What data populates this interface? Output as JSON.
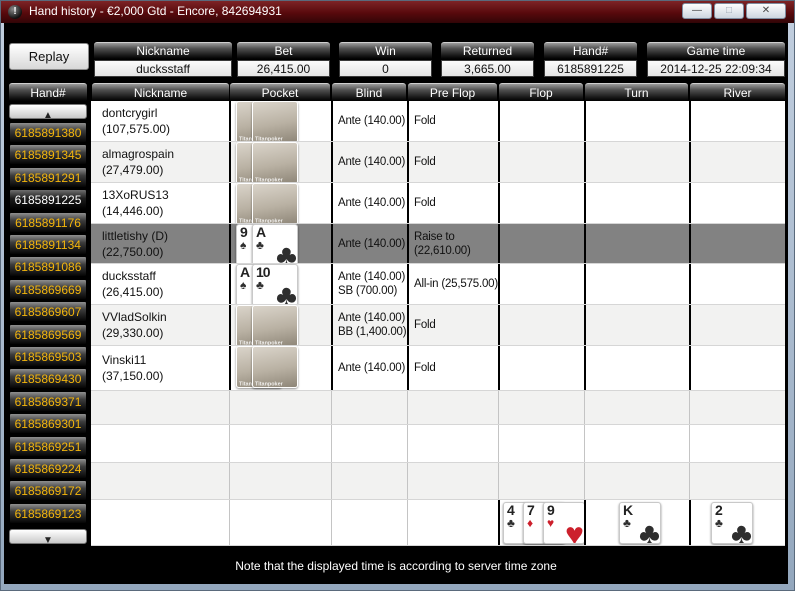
{
  "window": {
    "title": "Hand history - €2,000 Gtd - Encore, 842694931",
    "title_icon_glyph": "!",
    "minimize_glyph": "—",
    "maximize_glyph": "□",
    "close_glyph": "✕"
  },
  "summary": {
    "replay_label": "Replay",
    "fields": [
      {
        "label": "Nickname",
        "value": "ducksstaff"
      },
      {
        "label": "Bet",
        "value": "26,415.00"
      },
      {
        "label": "Win",
        "value": "0"
      },
      {
        "label": "Returned",
        "value": "3,665.00"
      },
      {
        "label": "Hand#",
        "value": "6185891225"
      },
      {
        "label": "Game time",
        "value": "2014-12-25 22:09:34"
      }
    ]
  },
  "columns": [
    "Hand#",
    "Nickname",
    "Pocket",
    "Blind",
    "Pre Flop",
    "Flop",
    "Turn",
    "River"
  ],
  "sidebar": {
    "up_icon": "▲",
    "down_icon": "▼",
    "selected": "6185891225",
    "hands": [
      "6185891380",
      "6185891345",
      "6185891291",
      "6185891225",
      "6185891176",
      "6185891134",
      "6185891086",
      "6185869669",
      "6185869607",
      "6185869569",
      "6185869503",
      "6185869430",
      "6185869371",
      "6185869301",
      "6185869251",
      "6185869224",
      "6185869172",
      "6185869123"
    ]
  },
  "rows": [
    {
      "nickname": "dontcrygirl",
      "stack": "(107,575.00)",
      "pocket": "hidden",
      "blind": [
        "Ante (140.00)"
      ],
      "preflop": "Fold",
      "highlight": false
    },
    {
      "nickname": "almagrospain",
      "stack": "(27,479.00)",
      "pocket": "hidden",
      "blind": [
        "Ante (140.00)"
      ],
      "preflop": "Fold",
      "highlight": false
    },
    {
      "nickname": "13XoRUS13",
      "stack": "(14,446.00)",
      "pocket": "hidden",
      "blind": [
        "Ante (140.00)"
      ],
      "preflop": "Fold",
      "highlight": false
    },
    {
      "nickname": "littletishy (D)",
      "stack": "(22,750.00)",
      "pocket": [
        {
          "rank": "9",
          "suit": "spade"
        },
        {
          "rank": "A",
          "suit": "club"
        }
      ],
      "blind": [
        "Ante (140.00)"
      ],
      "preflop": "Raise to (22,610.00)",
      "highlight": true
    },
    {
      "nickname": "ducksstaff",
      "stack": "(26,415.00)",
      "pocket": [
        {
          "rank": "A",
          "suit": "spade"
        },
        {
          "rank": "10",
          "suit": "club"
        }
      ],
      "blind": [
        "Ante (140.00)",
        "SB (700.00)"
      ],
      "preflop": "All-in (25,575.00)",
      "highlight": false
    },
    {
      "nickname": "VVladSolkin",
      "stack": "(29,330.00)",
      "pocket": "hidden",
      "blind": [
        "Ante (140.00)",
        "BB (1,400.00)"
      ],
      "preflop": "Fold",
      "highlight": false
    },
    {
      "nickname": "Vinski11",
      "stack": "(37,150.00)",
      "pocket": "hidden",
      "blind": [
        "Ante (140.00)"
      ],
      "preflop": "Fold",
      "highlight": false
    }
  ],
  "board": {
    "flop": [
      {
        "rank": "4",
        "suit": "club"
      },
      {
        "rank": "7",
        "suit": "diamond"
      },
      {
        "rank": "9",
        "suit": "heart"
      }
    ],
    "turn": [
      {
        "rank": "K",
        "suit": "club"
      }
    ],
    "river": [
      {
        "rank": "2",
        "suit": "club"
      }
    ]
  },
  "card_back_brand": "Titanpoker",
  "footer": {
    "note": "Note that the displayed time is according to server time zone"
  },
  "colors": {
    "titlebar": "#58090c",
    "hand_number_gold": "#f3b50c",
    "highlight_row": "#828282",
    "alt_row": "#f2f2f1",
    "suit_red": "#cc202c",
    "suit_black": "#2e2e2e"
  }
}
